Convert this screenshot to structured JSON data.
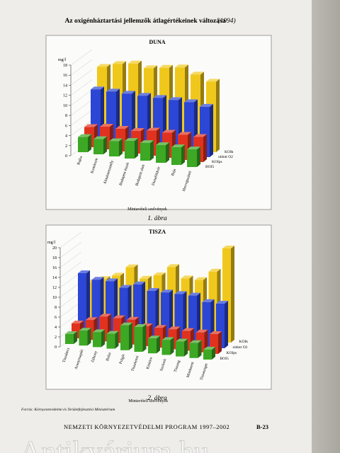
{
  "title": "Az oxigénháztartási jellemzők átlagértékeinek változása",
  "title_year": "(1994)",
  "captions": [
    "1. ábra",
    "2. ábra"
  ],
  "source": "Forrás: Környezetvédelmi és Területfejlesztési Minisztérium",
  "footer": {
    "program": "NEMZETI KÖRNYEZETVÉDELMI PROGRAM 1997–2002",
    "page": "B-23"
  },
  "watermark": "Antikvárium.hu",
  "chart_data": [
    {
      "type": "bar3d",
      "title": "DUNA",
      "ylabel": "mg/l",
      "xlabel": "Mintavételi szelvények",
      "categories": [
        "Rajka",
        "Komárom",
        "Almásneszmély",
        "Budapest észak",
        "Budapest alatt",
        "Dunaföldvár",
        "Baja",
        "Hercegszántó"
      ],
      "series": [
        {
          "name": "KOIk",
          "color": "#f0c81c",
          "values": [
            14,
            15,
            15.5,
            15,
            15.5,
            16,
            15,
            14
          ]
        },
        {
          "name": "oldott O2",
          "color": "#2c46d6",
          "values": [
            10.5,
            10.5,
            10.5,
            10.5,
            10.5,
            10.5,
            10.5,
            10
          ]
        },
        {
          "name": "KOIps",
          "color": "#e0321e",
          "values": [
            4,
            4.5,
            4.5,
            4.5,
            5,
            5,
            5,
            5
          ]
        },
        {
          "name": "BOI5",
          "color": "#3ca824",
          "values": [
            3,
            3,
            3,
            3.5,
            3.5,
            3.5,
            3.5,
            3.5
          ]
        }
      ],
      "ylim": [
        0,
        18
      ],
      "yticks": [
        0,
        2,
        4,
        6,
        8,
        10,
        12,
        14,
        16,
        18
      ]
    },
    {
      "type": "bar3d",
      "title": "TISZA",
      "ylabel": "mg/l",
      "xlabel": "Mintavételi szelvények",
      "categories": [
        "Tiszabecs",
        "Aranyosapáti",
        "Záhony",
        "Balsa",
        "Polgár",
        "Tiszakeszi",
        "Kisköre",
        "Szolnok",
        "Tiszaug",
        "Mindszent",
        "Tiszasziget"
      ],
      "series": [
        {
          "name": "KOIk",
          "color": "#f0c81c",
          "values": [
            9,
            10,
            11,
            13,
            11,
            12,
            14,
            12,
            12,
            14,
            19
          ]
        },
        {
          "name": "oldott O2",
          "color": "#2c46d6",
          "values": [
            12,
            11,
            11,
            10,
            11,
            10,
            10,
            10,
            10,
            9,
            9
          ]
        },
        {
          "name": "KOIps",
          "color": "#e0321e",
          "values": [
            3,
            4,
            5,
            5,
            5,
            4,
            4,
            4,
            4,
            4,
            4
          ]
        },
        {
          "name": "BOI5",
          "color": "#3ca824",
          "values": [
            2,
            3,
            3,
            3,
            5,
            5,
            3,
            3,
            3,
            3,
            2
          ]
        }
      ],
      "ylim": [
        0,
        20
      ],
      "yticks": [
        0,
        2,
        4,
        6,
        8,
        10,
        12,
        14,
        16,
        18,
        20
      ]
    }
  ]
}
